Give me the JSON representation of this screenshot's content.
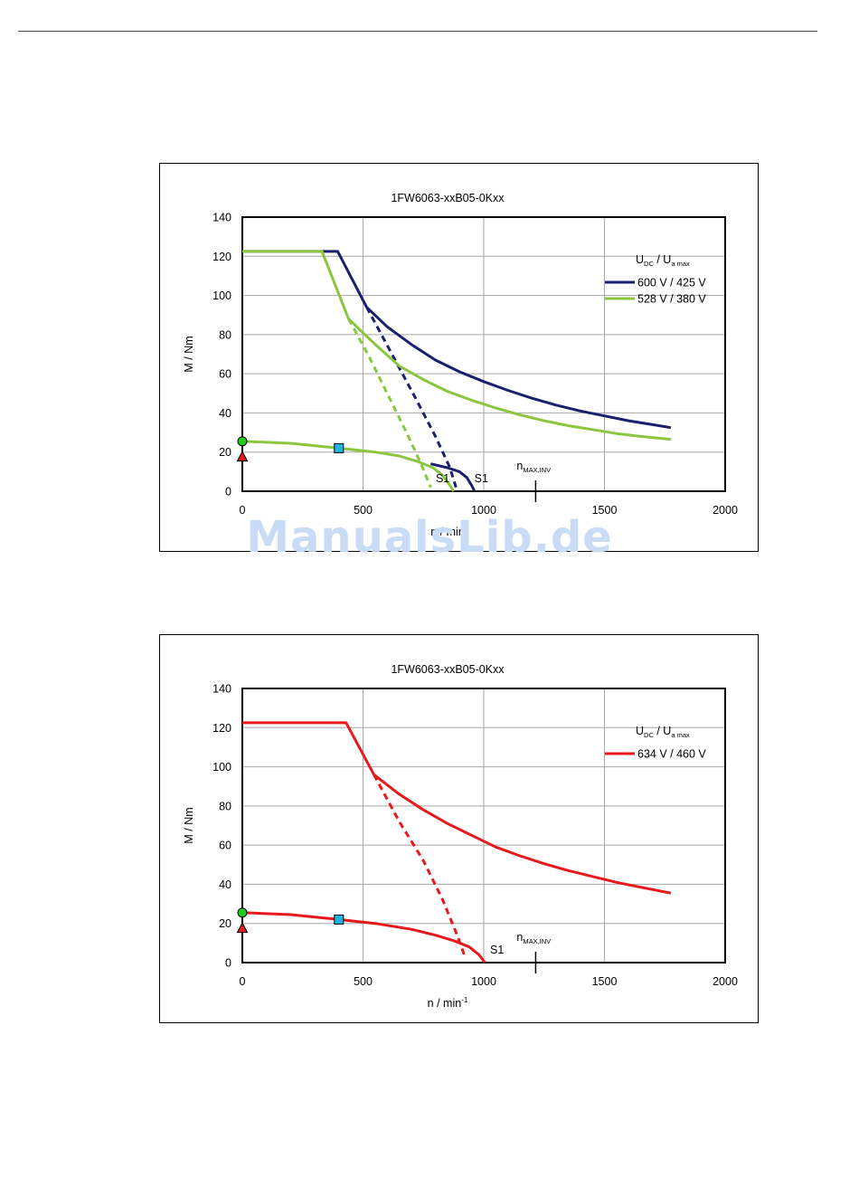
{
  "watermark": "ManualsLib.de",
  "chart_data": [
    {
      "type": "line",
      "title": "1FW6063-xxB05-0Kxx",
      "xlabel": "n / min",
      "xlabel_sup": "",
      "ylabel": "M / Nm",
      "xlim": [
        0,
        2000
      ],
      "ylim": [
        0,
        140
      ],
      "xticks": [
        0,
        500,
        1000,
        1500,
        2000
      ],
      "yticks": [
        0,
        20,
        40,
        60,
        80,
        100,
        120,
        140
      ],
      "grid": true,
      "legend_title": {
        "main": "U",
        "sub1": "DC",
        "sep": "  /  U",
        "sub2": "a max"
      },
      "legend_position": "top-right",
      "nmax_label": {
        "main": "n",
        "sub": "MAX,INV",
        "x": 1215
      },
      "markers": [
        {
          "shape": "circle",
          "x": 0,
          "y": 25.5,
          "color": "#22cc22"
        },
        {
          "shape": "triangle",
          "x": 0,
          "y": 17.5,
          "color": "#e02020"
        },
        {
          "shape": "square",
          "x": 400,
          "y": 22,
          "color": "#22b5e0"
        }
      ],
      "series": [
        {
          "name": "600 V / 425 V",
          "color": "#1a1f6e",
          "style": "solid",
          "x": [
            0,
            395,
            515,
            600,
            700,
            800,
            900,
            1000,
            1100,
            1200,
            1300,
            1400,
            1500,
            1600,
            1700,
            1775
          ],
          "y": [
            122.5,
            122.5,
            94,
            84,
            75,
            67,
            61,
            56,
            51.5,
            47.5,
            44,
            41,
            38.5,
            36,
            34,
            32.5
          ]
        },
        {
          "name": "",
          "color": "#1a1f6e",
          "style": "dashed",
          "x": [
            515,
            620,
            720,
            800,
            860,
            885
          ],
          "y": [
            94,
            70,
            47,
            28,
            12,
            2
          ]
        },
        {
          "name": "",
          "color": "#1a1f6e",
          "style": "solid",
          "x": [
            780,
            850,
            900,
            930,
            950,
            962
          ],
          "y": [
            14,
            12,
            10,
            7,
            3,
            0
          ]
        },
        {
          "name": "528 V / 380 V",
          "color": "#8cc63f",
          "style": "solid",
          "x": [
            0,
            330,
            440,
            550,
            650,
            750,
            850,
            950,
            1050,
            1150,
            1250,
            1350,
            1450,
            1550,
            1650,
            1775
          ],
          "y": [
            122.5,
            122.5,
            88,
            75,
            64,
            57,
            51,
            46.5,
            42.5,
            39,
            36,
            33.5,
            31.5,
            29.5,
            28,
            26.5
          ]
        },
        {
          "name": "",
          "color": "#8cc63f",
          "style": "dashed",
          "x": [
            440,
            520,
            600,
            680,
            740,
            780
          ],
          "y": [
            88,
            70,
            50,
            30,
            14,
            2
          ]
        },
        {
          "name": "",
          "color": "#8cc63f",
          "style": "solid",
          "x": [
            0,
            200,
            400,
            550,
            650,
            730,
            790,
            830,
            860,
            875
          ],
          "y": [
            25.5,
            24.5,
            22,
            20,
            18,
            15,
            12,
            8,
            3,
            0
          ]
        }
      ],
      "annotations": [
        {
          "text": "S1",
          "x": 800,
          "y": 5
        },
        {
          "text": "S1",
          "x": 960,
          "y": 5
        }
      ]
    },
    {
      "type": "line",
      "title": "1FW6063-xxB05-0Kxx",
      "xlabel": "n / min",
      "xlabel_sup": "-1",
      "ylabel": "M / Nm",
      "xlim": [
        0,
        2000
      ],
      "ylim": [
        0,
        140
      ],
      "xticks": [
        0,
        500,
        1000,
        1500,
        2000
      ],
      "yticks": [
        0,
        20,
        40,
        60,
        80,
        100,
        120,
        140
      ],
      "grid": true,
      "legend_title": {
        "main": "U",
        "sub1": "DC",
        "sep": "  /  U",
        "sub2": "a max"
      },
      "legend_position": "top-right",
      "nmax_label": {
        "main": "n",
        "sub": "MAX,INV",
        "x": 1215
      },
      "markers": [
        {
          "shape": "circle",
          "x": 0,
          "y": 25.5,
          "color": "#22cc22"
        },
        {
          "shape": "triangle",
          "x": 0,
          "y": 17.5,
          "color": "#e02020"
        },
        {
          "shape": "square",
          "x": 400,
          "y": 22,
          "color": "#22b5e0"
        }
      ],
      "series": [
        {
          "name": "634 V / 460 V",
          "color": "#e8191c",
          "style": "solid",
          "x": [
            0,
            430,
            545,
            650,
            750,
            850,
            950,
            1050,
            1150,
            1250,
            1350,
            1450,
            1550,
            1650,
            1775
          ],
          "y": [
            122.5,
            122.5,
            96,
            86,
            78,
            71,
            65,
            59,
            54.5,
            50.5,
            47,
            44,
            41,
            38.5,
            35.5
          ]
        },
        {
          "name": "",
          "color": "#e8191c",
          "style": "dashed",
          "x": [
            545,
            650,
            750,
            830,
            890,
            925
          ],
          "y": [
            96,
            72,
            52,
            32,
            14,
            2
          ]
        },
        {
          "name": "",
          "color": "#e8191c",
          "style": "solid",
          "x": [
            0,
            200,
            400,
            550,
            700,
            800,
            880,
            940,
            980,
            1005
          ],
          "y": [
            25.5,
            24.5,
            22,
            20,
            17,
            14,
            11,
            8,
            4,
            0
          ]
        }
      ],
      "annotations": [
        {
          "text": "S1",
          "x": 1025,
          "y": 5
        }
      ]
    }
  ]
}
